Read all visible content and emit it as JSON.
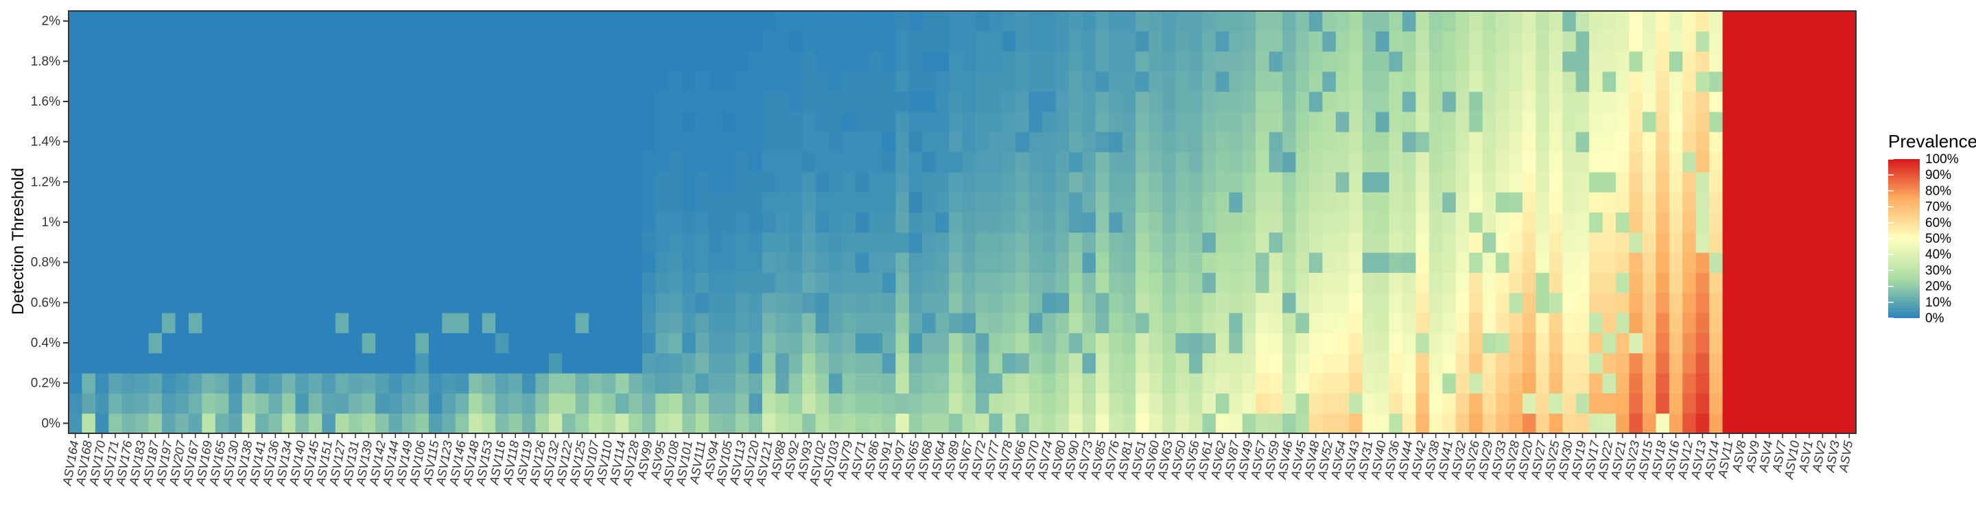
{
  "chart_data": {
    "type": "heatmap",
    "title": "",
    "xlabel": "",
    "ylabel": "Detection Threshold",
    "legend": {
      "title": "Prevalence",
      "position": "right",
      "labels": [
        "100%",
        "90%",
        "80%",
        "70%",
        "60%",
        "50%",
        "40%",
        "30%",
        "20%",
        "10%",
        "0%"
      ]
    },
    "color_scale": [
      "#2b83ba",
      "#abdda4",
      "#ffffbf",
      "#fdae61",
      "#d7191c"
    ],
    "y_ticks": [
      "2%",
      "1.8%",
      "1.6%",
      "1.4%",
      "1.2%",
      "1%",
      "0.8%",
      "0.6%",
      "0.4%",
      "0.2%",
      "0%"
    ],
    "y_range": [
      0,
      2.1
    ],
    "x_categories": [
      "ASV164",
      "ASV168",
      "ASV170",
      "ASV171",
      "ASV176",
      "ASV183",
      "ASV187",
      "ASV197",
      "ASV207",
      "ASV167",
      "ASV169",
      "ASV165",
      "ASV130",
      "ASV138",
      "ASV141",
      "ASV136",
      "ASV134",
      "ASV140",
      "ASV145",
      "ASV151",
      "ASV127",
      "ASV131",
      "ASV139",
      "ASV142",
      "ASV144",
      "ASV149",
      "ASV106",
      "ASV115",
      "ASV123",
      "ASV146",
      "ASV148",
      "ASV153",
      "ASV116",
      "ASV118",
      "ASV119",
      "ASV126",
      "ASV132",
      "ASV122",
      "ASV125",
      "ASV107",
      "ASV110",
      "ASV114",
      "ASV128",
      "ASV99",
      "ASV95",
      "ASV108",
      "ASV101",
      "ASV111",
      "ASV94",
      "ASV105",
      "ASV113",
      "ASV120",
      "ASV121",
      "ASV88",
      "ASV92",
      "ASV93",
      "ASV102",
      "ASV103",
      "ASV79",
      "ASV71",
      "ASV86",
      "ASV91",
      "ASV97",
      "ASV65",
      "ASV68",
      "ASV64",
      "ASV89",
      "ASV67",
      "ASV72",
      "ASV77",
      "ASV78",
      "ASV66",
      "ASV70",
      "ASV74",
      "ASV80",
      "ASV90",
      "ASV73",
      "ASV85",
      "ASV76",
      "ASV81",
      "ASV51",
      "ASV60",
      "ASV63",
      "ASV50",
      "ASV56",
      "ASV61",
      "ASV62",
      "ASV87",
      "ASV49",
      "ASV57",
      "ASV59",
      "ASV46",
      "ASV45",
      "ASV48",
      "ASV52",
      "ASV54",
      "ASV43",
      "ASV31",
      "ASV40",
      "ASV36",
      "ASV44",
      "ASV42",
      "ASV38",
      "ASV41",
      "ASV32",
      "ASV26",
      "ASV29",
      "ASV33",
      "ASV28",
      "ASV20",
      "ASV27",
      "ASV25",
      "ASV30",
      "ASV19",
      "ASV17",
      "ASV22",
      "ASV21",
      "ASV23",
      "ASV15",
      "ASV18",
      "ASV16",
      "ASV12",
      "ASV13",
      "ASV14",
      "ASV11",
      "ASV8",
      "ASV9",
      "ASV4",
      "ASV7",
      "ASV10",
      "ASV1",
      "ASV2",
      "ASV3",
      "ASV5"
    ],
    "heat": {
      "description_rows": "prevalence (0-1) per category, one row per threshold bin from 0% upward (bins of 0.1%)",
      "rows": []
    }
  }
}
